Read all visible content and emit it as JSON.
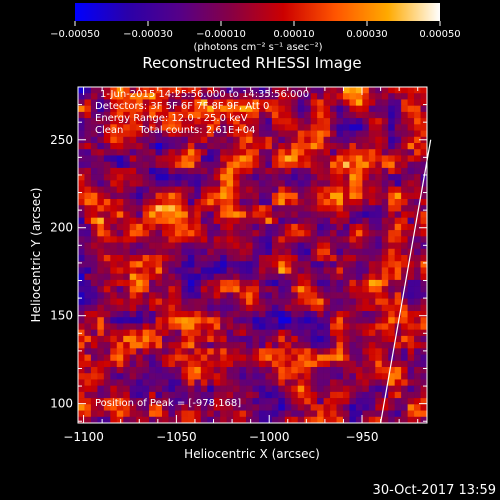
{
  "chart_data": {
    "type": "heatmap",
    "title": "Reconstructed RHESSI Image",
    "xlabel": "Heliocentric X (arcsec)",
    "ylabel": "Heliocentric Y (arcsec)",
    "xlim": [
      -1103,
      -915
    ],
    "ylim": [
      89,
      280
    ],
    "xticks": [
      -1100,
      -1050,
      -1000,
      -950
    ],
    "xtick_labels": [
      "−1100",
      "−1050",
      "−1000",
      "−950"
    ],
    "yticks": [
      100,
      150,
      200,
      250
    ],
    "ytick_labels": [
      "100",
      "150",
      "200",
      "250"
    ],
    "colorbar": {
      "range": [
        -0.0005,
        0.0005
      ],
      "ticks": [
        -0.0005,
        -0.0003,
        -0.0001,
        0.0001,
        0.0003,
        0.0005
      ],
      "tick_labels": [
        "−0.00050",
        "−0.00030",
        "−0.00010",
        "0.00010",
        "0.00030",
        "0.00050"
      ],
      "unit_label": "(photons cm⁻² s⁻¹ asec⁻²)",
      "colors": [
        "#0000ff",
        "#2a00aa",
        "#550088",
        "#880044",
        "#cc0000",
        "#ff5500",
        "#ffaa00",
        "#ffffff"
      ]
    },
    "annotations": {
      "time_range": "1-Jun-2015 14:25:56.000 to 14:35:56.000",
      "detectors": "Detectors: 3F 5F 6F 7F 8F 9F, Att 0",
      "energy": "Energy Range: 12.0 - 25.0 keV",
      "method_counts": "Clean     Total counts: 2.61E+04",
      "peak": "Position of Peak = [-978,168]"
    },
    "limb_line": {
      "x": [
        -940,
        -913
      ],
      "y": [
        89,
        250
      ]
    },
    "grid_size": [
      54,
      54
    ]
  },
  "footer": {
    "timestamp": "30-Oct-2017 13:59"
  }
}
